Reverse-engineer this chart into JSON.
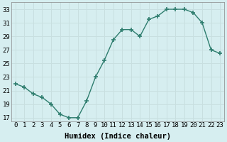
{
  "x": [
    0,
    1,
    2,
    3,
    4,
    5,
    6,
    7,
    8,
    9,
    10,
    11,
    12,
    13,
    14,
    15,
    16,
    17,
    18,
    19,
    20,
    21,
    22,
    23
  ],
  "y": [
    22.0,
    21.5,
    20.5,
    20.0,
    19.0,
    17.5,
    17.0,
    17.0,
    19.5,
    23.0,
    25.5,
    28.5,
    30.0,
    30.0,
    29.0,
    31.5,
    32.0,
    33.0,
    33.0,
    33.0,
    32.5,
    31.0,
    27.0,
    26.5
  ],
  "xlabel": "Humidex (Indice chaleur)",
  "ylim": [
    16.5,
    34.0
  ],
  "yticks": [
    17,
    19,
    21,
    23,
    25,
    27,
    29,
    31,
    33
  ],
  "xticks": [
    0,
    1,
    2,
    3,
    4,
    5,
    6,
    7,
    8,
    9,
    10,
    11,
    12,
    13,
    14,
    15,
    16,
    17,
    18,
    19,
    20,
    21,
    22,
    23
  ],
  "xlim": [
    -0.5,
    23.5
  ],
  "line_color": "#2e7d6e",
  "marker": "+",
  "markersize": 4,
  "bg_color": "#d6eef0",
  "grid_color": "#c8dfe0",
  "tick_label_fontsize": 6.5,
  "xlabel_fontsize": 7.5
}
